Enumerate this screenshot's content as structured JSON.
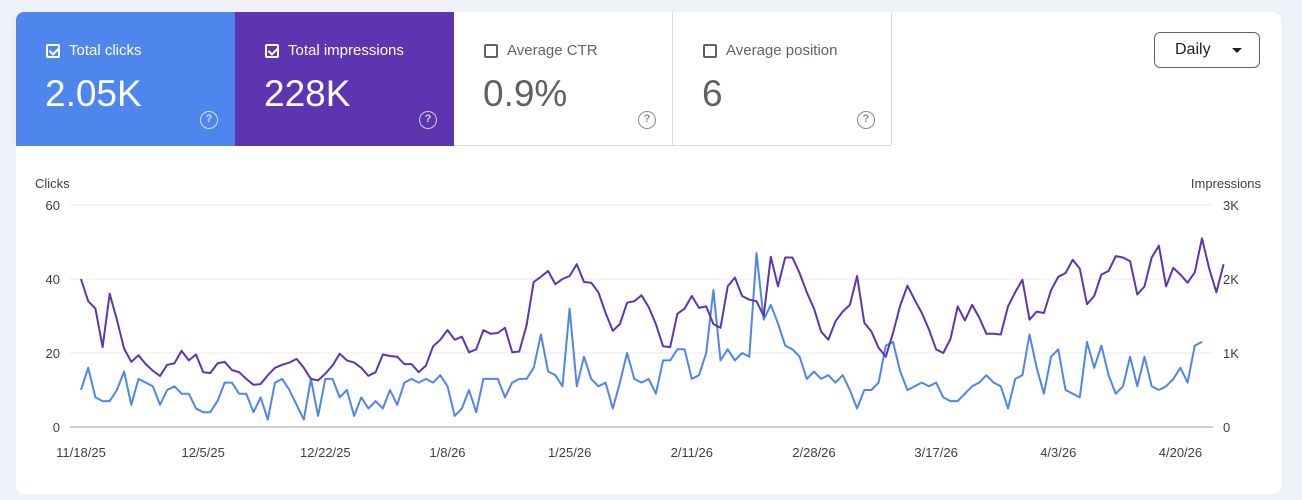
{
  "metrics": [
    {
      "id": "clicks",
      "label": "Total clicks",
      "value": "2.05K",
      "checked": true,
      "color": "#4f86ee"
    },
    {
      "id": "impressions",
      "label": "Total impressions",
      "value": "228K",
      "checked": true,
      "color": "#5e35b1"
    },
    {
      "id": "ctr",
      "label": "Average CTR",
      "value": "0.9%",
      "checked": false
    },
    {
      "id": "position",
      "label": "Average position",
      "value": "6",
      "checked": false
    }
  ],
  "help_icon": "?",
  "dropdown": {
    "label": "Daily",
    "icon": "caret-down-icon"
  },
  "chart_data": {
    "type": "line",
    "y_left": {
      "label": "Clicks",
      "ticks": [
        "60",
        "40",
        "20",
        "0"
      ],
      "range": [
        0,
        60
      ]
    },
    "y_right": {
      "label": "Impressions",
      "ticks": [
        "3K",
        "2K",
        "1K",
        "0"
      ],
      "range": [
        0,
        3000
      ]
    },
    "x_ticks": [
      "11/18/25",
      "12/5/25",
      "12/22/25",
      "1/8/26",
      "1/25/26",
      "2/11/26",
      "2/28/26",
      "3/17/26",
      "4/3/26",
      "4/20/26"
    ],
    "x_range": [
      "11/18/25",
      "4/21/26"
    ],
    "grid": true,
    "series": [
      {
        "name": "Total clicks",
        "axis": "left",
        "color": "#4f86ee",
        "values": [
          10,
          16,
          8,
          7,
          7,
          10,
          15,
          6,
          13,
          12,
          11,
          6,
          10,
          11,
          9,
          9,
          5,
          4,
          4,
          7,
          12,
          12,
          9,
          9,
          4,
          8,
          2,
          12,
          13,
          10,
          6,
          2,
          13,
          3,
          13,
          13,
          8,
          10,
          3,
          8,
          5,
          7,
          5,
          10,
          6,
          12,
          13,
          12,
          13,
          12,
          14,
          11,
          3,
          5,
          10,
          4,
          13,
          13,
          13,
          8,
          12,
          13,
          13,
          16,
          25,
          15,
          14,
          11,
          32,
          11,
          19,
          13,
          11,
          12,
          5,
          12,
          20,
          13,
          12,
          13,
          9,
          18,
          18,
          21,
          21,
          13,
          14,
          20,
          37,
          18,
          21,
          18,
          20,
          19,
          47,
          29,
          33,
          28,
          22,
          21,
          19,
          13,
          15,
          13,
          14,
          12,
          14,
          10,
          5,
          10,
          10,
          12,
          22,
          23,
          15,
          10,
          11,
          12,
          11,
          12,
          8,
          7,
          7,
          9,
          11,
          12,
          14,
          12,
          11,
          5,
          13,
          14,
          25,
          16,
          9,
          19,
          21,
          10,
          9,
          8,
          23,
          16,
          22,
          14,
          9,
          11,
          19,
          11,
          19,
          11,
          10,
          11,
          13,
          16,
          12,
          22,
          23
        ]
      },
      {
        "name": "Total impressions",
        "axis": "right",
        "color": "#5e35b1",
        "values": [
          2000,
          1700,
          1600,
          1080,
          1800,
          1450,
          1060,
          880,
          970,
          850,
          760,
          690,
          840,
          860,
          1030,
          900,
          980,
          740,
          730,
          860,
          880,
          770,
          740,
          650,
          570,
          580,
          700,
          800,
          840,
          870,
          920,
          800,
          650,
          630,
          720,
          830,
          990,
          900,
          870,
          800,
          690,
          740,
          980,
          960,
          950,
          850,
          850,
          740,
          830,
          1090,
          1180,
          1310,
          1180,
          1220,
          1010,
          1050,
          1310,
          1260,
          1270,
          1340,
          1010,
          1020,
          1370,
          1960,
          2030,
          2110,
          1930,
          2000,
          2040,
          2200,
          1960,
          1950,
          1820,
          1540,
          1300,
          1390,
          1680,
          1700,
          1780,
          1620,
          1390,
          1090,
          1080,
          1530,
          1600,
          1770,
          1610,
          1630,
          1390,
          1340,
          1900,
          2020,
          1770,
          1720,
          1700,
          1500,
          2300,
          1900,
          2290,
          2290,
          2080,
          1820,
          1600,
          1290,
          1180,
          1430,
          1560,
          1650,
          2040,
          1410,
          1290,
          1070,
          950,
          1270,
          1640,
          1910,
          1720,
          1540,
          1320,
          1050,
          1000,
          1190,
          1630,
          1440,
          1650,
          1480,
          1260,
          1260,
          1250,
          1630,
          1820,
          1990,
          1450,
          1560,
          1540,
          1850,
          2030,
          2080,
          2260,
          2140,
          1660,
          1770,
          2060,
          2110,
          2310,
          2290,
          2240,
          1790,
          1900,
          2290,
          2450,
          1900,
          2150,
          2060,
          1950,
          2090,
          2550,
          2140,
          1820,
          2200
        ]
      }
    ]
  }
}
